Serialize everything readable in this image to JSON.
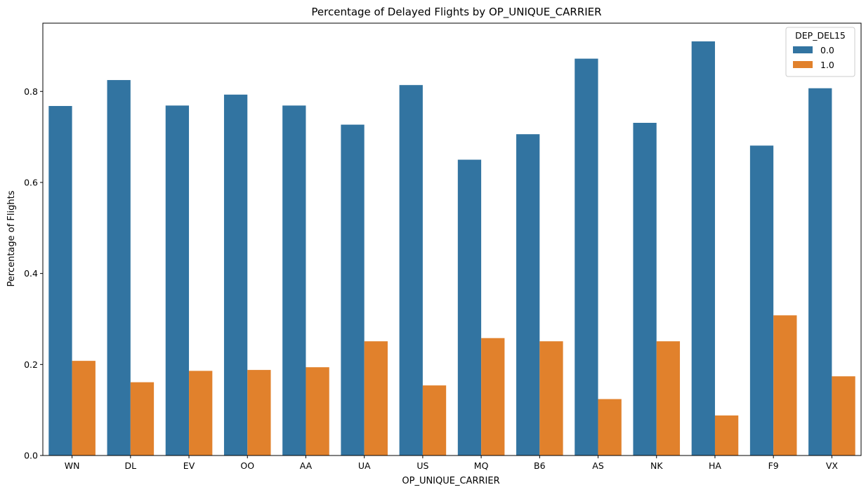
{
  "chart_data": {
    "type": "bar",
    "title": "Percentage of Delayed Flights by OP_UNIQUE_CARRIER",
    "xlabel": "OP_UNIQUE_CARRIER",
    "ylabel": "Percentage of Flights",
    "categories": [
      "WN",
      "DL",
      "EV",
      "OO",
      "AA",
      "UA",
      "US",
      "MQ",
      "B6",
      "AS",
      "NK",
      "HA",
      "F9",
      "VX"
    ],
    "series": [
      {
        "name": "0.0",
        "color": "#3274a1",
        "values": [
          0.768,
          0.825,
          0.769,
          0.793,
          0.769,
          0.727,
          0.814,
          0.65,
          0.706,
          0.872,
          0.731,
          0.91,
          0.681,
          0.807
        ]
      },
      {
        "name": "1.0",
        "color": "#e1812c",
        "values": [
          0.208,
          0.161,
          0.186,
          0.188,
          0.194,
          0.251,
          0.154,
          0.258,
          0.251,
          0.124,
          0.251,
          0.088,
          0.308,
          0.174
        ]
      }
    ],
    "ylim": [
      0,
      0.95
    ],
    "yticks": [
      0.0,
      0.2,
      0.4,
      0.6,
      0.8
    ],
    "ytick_labels": [
      "0.0",
      "0.2",
      "0.4",
      "0.6",
      "0.8"
    ],
    "grid": false,
    "legend": {
      "title": "DEP_DEL15",
      "placement": "top-right"
    }
  }
}
